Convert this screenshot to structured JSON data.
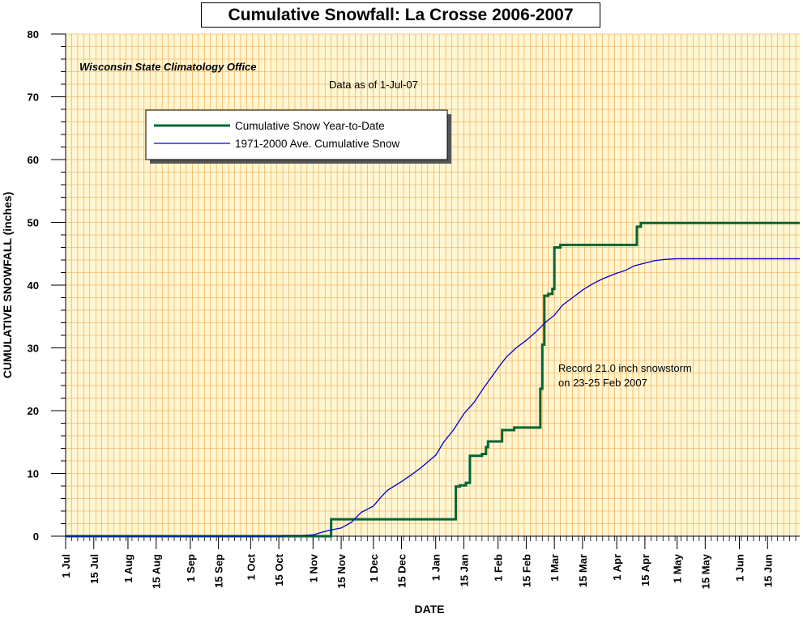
{
  "chart_data": {
    "type": "line",
    "title": "Cumulative Snowfall: La Crosse 2006-2007",
    "xlabel": "DATE",
    "ylabel": "CUMULATIVE SNOWFALL (inches)",
    "ylim": [
      0,
      80
    ],
    "xlim": [
      "2006-07-01",
      "2007-07-01"
    ],
    "grid": true,
    "legend_position": "top-left",
    "y_ticks": [
      "0",
      "10",
      "20",
      "30",
      "40",
      "50",
      "60",
      "70",
      "80"
    ],
    "x_ticks": [
      {
        "label": "1 Jul",
        "date": "2006-07-01"
      },
      {
        "label": "15 Jul",
        "date": "2006-07-15"
      },
      {
        "label": "1 Aug",
        "date": "2006-08-01"
      },
      {
        "label": "15 Aug",
        "date": "2006-08-15"
      },
      {
        "label": "1 Sep",
        "date": "2006-09-01"
      },
      {
        "label": "15 Sep",
        "date": "2006-09-15"
      },
      {
        "label": "1 Oct",
        "date": "2006-10-01"
      },
      {
        "label": "15 Oct",
        "date": "2006-10-15"
      },
      {
        "label": "1 Nov",
        "date": "2006-11-01"
      },
      {
        "label": "15 Nov",
        "date": "2006-11-15"
      },
      {
        "label": "1 Dec",
        "date": "2006-12-01"
      },
      {
        "label": "15 Dec",
        "date": "2006-12-15"
      },
      {
        "label": "1 Jan",
        "date": "2007-01-01"
      },
      {
        "label": "15 Jan",
        "date": "2007-01-15"
      },
      {
        "label": "1 Feb",
        "date": "2007-02-01"
      },
      {
        "label": "15 Feb",
        "date": "2007-02-15"
      },
      {
        "label": "1 Mar",
        "date": "2007-03-01"
      },
      {
        "label": "15 Mar",
        "date": "2007-03-15"
      },
      {
        "label": "1 Apr",
        "date": "2007-04-01"
      },
      {
        "label": "15 Apr",
        "date": "2007-04-15"
      },
      {
        "label": "1 May",
        "date": "2007-05-01"
      },
      {
        "label": "15 May",
        "date": "2007-05-15"
      },
      {
        "label": "1 Jun",
        "date": "2007-06-01"
      },
      {
        "label": "15 Jun",
        "date": "2007-06-15"
      }
    ],
    "annotations": {
      "source": "Wisconsin State Climatology Office",
      "data_as_of": "Data as of 1-Jul-07",
      "record_line1": "Record 21.0 inch snowstorm",
      "record_line2": "on 23-25 Feb 2007"
    },
    "series": [
      {
        "name": "Cumulative Snow Year-to-Date",
        "color": "#006633",
        "style": "step",
        "points": [
          [
            "2006-07-01",
            0
          ],
          [
            "2006-11-10",
            0
          ],
          [
            "2006-11-10",
            2.7
          ],
          [
            "2007-01-11",
            2.7
          ],
          [
            "2007-01-11",
            7.9
          ],
          [
            "2007-01-13",
            7.9
          ],
          [
            "2007-01-13",
            8.1
          ],
          [
            "2007-01-16",
            8.1
          ],
          [
            "2007-01-16",
            8.5
          ],
          [
            "2007-01-18",
            8.5
          ],
          [
            "2007-01-18",
            12.8
          ],
          [
            "2007-01-24",
            12.8
          ],
          [
            "2007-01-24",
            13.1
          ],
          [
            "2007-01-26",
            13.1
          ],
          [
            "2007-01-26",
            14.2
          ],
          [
            "2007-01-27",
            14.2
          ],
          [
            "2007-01-27",
            15.1
          ],
          [
            "2007-02-03",
            15.1
          ],
          [
            "2007-02-03",
            16.9
          ],
          [
            "2007-02-09",
            16.9
          ],
          [
            "2007-02-09",
            17.3
          ],
          [
            "2007-02-22",
            17.3
          ],
          [
            "2007-02-22",
            23.5
          ],
          [
            "2007-02-23",
            23.5
          ],
          [
            "2007-02-23",
            30.5
          ],
          [
            "2007-02-24",
            30.5
          ],
          [
            "2007-02-24",
            38.3
          ],
          [
            "2007-02-26",
            38.3
          ],
          [
            "2007-02-26",
            38.6
          ],
          [
            "2007-02-28",
            38.6
          ],
          [
            "2007-02-28",
            39.4
          ],
          [
            "2007-03-01",
            39.4
          ],
          [
            "2007-03-01",
            46.0
          ],
          [
            "2007-03-04",
            46.0
          ],
          [
            "2007-03-04",
            46.4
          ],
          [
            "2007-04-11",
            46.4
          ],
          [
            "2007-04-11",
            49.3
          ],
          [
            "2007-04-13",
            49.3
          ],
          [
            "2007-04-13",
            49.9
          ],
          [
            "2007-07-01",
            49.9
          ]
        ]
      },
      {
        "name": "1971-2000 Ave. Cumulative Snow",
        "color": "#0000cc",
        "style": "line",
        "points": [
          [
            "2006-07-01",
            0
          ],
          [
            "2006-10-15",
            0
          ],
          [
            "2006-10-20",
            0.1
          ],
          [
            "2006-10-25",
            0.1
          ],
          [
            "2006-11-01",
            0.2
          ],
          [
            "2006-11-05",
            0.6
          ],
          [
            "2006-11-10",
            1.0
          ],
          [
            "2006-11-15",
            1.3
          ],
          [
            "2006-11-20",
            2.2
          ],
          [
            "2006-11-25",
            3.8
          ],
          [
            "2006-12-01",
            4.8
          ],
          [
            "2006-12-05",
            6.3
          ],
          [
            "2006-12-08",
            7.3
          ],
          [
            "2006-12-15",
            8.7
          ],
          [
            "2006-12-20",
            9.8
          ],
          [
            "2006-12-25",
            11.0
          ],
          [
            "2007-01-01",
            12.9
          ],
          [
            "2007-01-05",
            15.0
          ],
          [
            "2007-01-10",
            17.0
          ],
          [
            "2007-01-15",
            19.5
          ],
          [
            "2007-01-20",
            21.3
          ],
          [
            "2007-01-25",
            23.7
          ],
          [
            "2007-02-01",
            26.8
          ],
          [
            "2007-02-05",
            28.5
          ],
          [
            "2007-02-10",
            30.0
          ],
          [
            "2007-02-15",
            31.2
          ],
          [
            "2007-02-20",
            32.6
          ],
          [
            "2007-02-25",
            34.2
          ],
          [
            "2007-03-01",
            35.2
          ],
          [
            "2007-03-05",
            36.8
          ],
          [
            "2007-03-10",
            38.0
          ],
          [
            "2007-03-15",
            39.2
          ],
          [
            "2007-03-20",
            40.2
          ],
          [
            "2007-03-25",
            41.0
          ],
          [
            "2007-04-01",
            41.9
          ],
          [
            "2007-04-05",
            42.3
          ],
          [
            "2007-04-10",
            43.1
          ],
          [
            "2007-04-15",
            43.5
          ],
          [
            "2007-04-20",
            43.9
          ],
          [
            "2007-04-25",
            44.1
          ],
          [
            "2007-05-01",
            44.2
          ],
          [
            "2007-07-01",
            44.2
          ]
        ]
      }
    ]
  }
}
